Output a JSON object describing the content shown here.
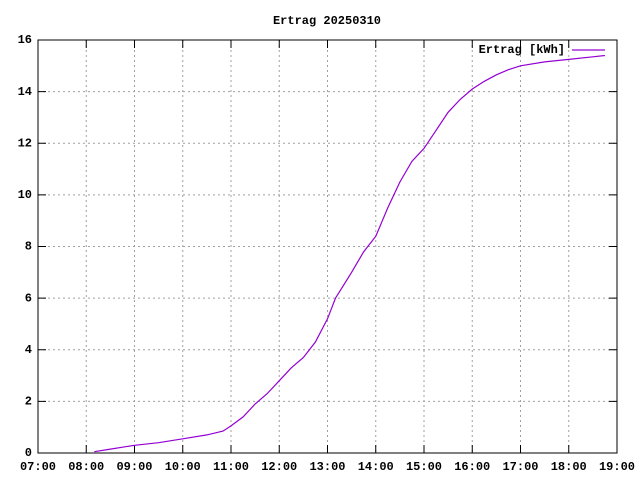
{
  "chart_data": {
    "type": "line",
    "title": "Ertrag 20250310",
    "x": [
      "08:10",
      "08:30",
      "09:00",
      "09:30",
      "10:00",
      "10:30",
      "10:50",
      "11:00",
      "11:15",
      "11:30",
      "11:45",
      "12:00",
      "12:15",
      "12:30",
      "12:45",
      "13:00",
      "13:10",
      "13:20",
      "13:30",
      "13:45",
      "14:00",
      "14:15",
      "14:30",
      "14:45",
      "15:00",
      "15:15",
      "15:30",
      "15:45",
      "16:00",
      "16:15",
      "16:30",
      "16:45",
      "17:00",
      "17:30",
      "18:00",
      "18:30",
      "18:45"
    ],
    "series": [
      {
        "name": "Ertrag [kWh]",
        "color": "#9400d3",
        "values": [
          0.05,
          0.15,
          0.3,
          0.4,
          0.55,
          0.7,
          0.85,
          1.05,
          1.4,
          1.9,
          2.3,
          2.8,
          3.3,
          3.7,
          4.3,
          5.2,
          6.0,
          6.5,
          7.0,
          7.8,
          8.4,
          9.5,
          10.5,
          11.3,
          11.8,
          12.5,
          13.2,
          13.7,
          14.1,
          14.4,
          14.65,
          14.85,
          15.0,
          15.15,
          15.25,
          15.35,
          15.4
        ]
      }
    ],
    "xlim": [
      "07:00",
      "19:00"
    ],
    "xticks": [
      "07:00",
      "08:00",
      "09:00",
      "10:00",
      "11:00",
      "12:00",
      "13:00",
      "14:00",
      "15:00",
      "16:00",
      "17:00",
      "18:00",
      "19:00"
    ],
    "ylim": [
      0,
      16
    ],
    "yticks": [
      0,
      2,
      4,
      6,
      8,
      10,
      12,
      14,
      16
    ],
    "grid": true,
    "legend": "top-right"
  }
}
